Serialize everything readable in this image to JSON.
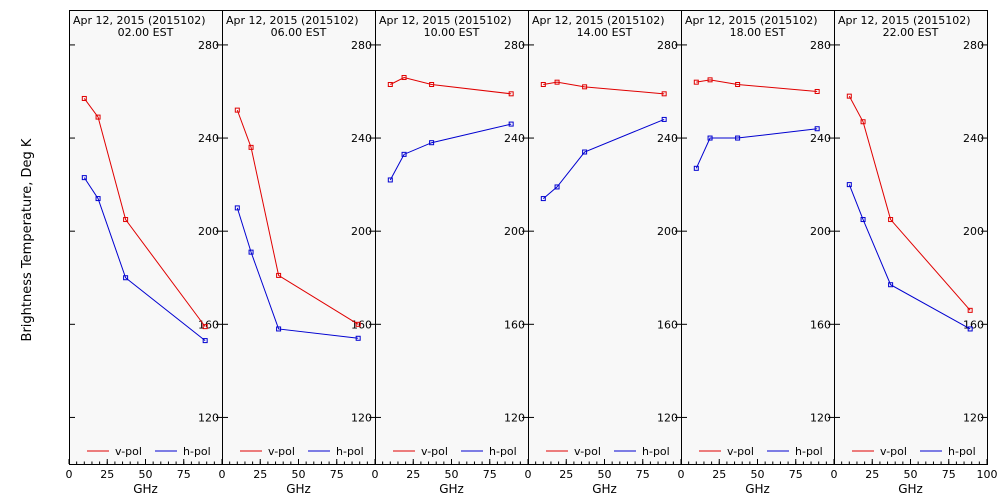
{
  "chart_data": {
    "type": "line",
    "ylabel": "Brightness Temperature, Deg K",
    "ylim": [
      100,
      295
    ],
    "yticks": [
      120,
      160,
      200,
      240,
      280
    ],
    "grid": false,
    "legend_placement": "bottom",
    "colors": {
      "v-pol": "#e00000",
      "h-pol": "#0000d0"
    },
    "panels": [
      {
        "title_line1": "Apr 12, 2015 (2015102)",
        "title_line2": "02.00 EST",
        "xlabel": "GHz",
        "xlim": [
          0,
          100
        ],
        "xticks": [
          0,
          25,
          50,
          75
        ],
        "series": [
          {
            "name": "v-pol",
            "x": [
              10,
              19,
              37,
              89
            ],
            "y": [
              257,
              249,
              205,
              159
            ]
          },
          {
            "name": "h-pol",
            "x": [
              10,
              19,
              37,
              89
            ],
            "y": [
              223,
              214,
              180,
              153
            ]
          }
        ]
      },
      {
        "title_line1": "Apr 12, 2015 (2015102)",
        "title_line2": "06.00 EST",
        "xlabel": "GHz",
        "xlim": [
          0,
          100
        ],
        "xticks": [
          0,
          25,
          50,
          75
        ],
        "series": [
          {
            "name": "v-pol",
            "x": [
              10,
              19,
              37,
              89
            ],
            "y": [
              252,
              236,
              181,
              160
            ]
          },
          {
            "name": "h-pol",
            "x": [
              10,
              19,
              37,
              89
            ],
            "y": [
              210,
              191,
              158,
              154
            ]
          }
        ]
      },
      {
        "title_line1": "Apr 12, 2015 (2015102)",
        "title_line2": "10.00 EST",
        "xlabel": "GHz",
        "xlim": [
          0,
          100
        ],
        "xticks": [
          0,
          25,
          50,
          75
        ],
        "series": [
          {
            "name": "v-pol",
            "x": [
              10,
              19,
              37,
              89
            ],
            "y": [
              263,
              266,
              263,
              259
            ]
          },
          {
            "name": "h-pol",
            "x": [
              10,
              19,
              37,
              89
            ],
            "y": [
              222,
              233,
              238,
              246
            ]
          }
        ]
      },
      {
        "title_line1": "Apr 12, 2015 (2015102)",
        "title_line2": "14.00 EST",
        "xlabel": "GHz",
        "xlim": [
          0,
          100
        ],
        "xticks": [
          0,
          25,
          50,
          75
        ],
        "series": [
          {
            "name": "v-pol",
            "x": [
              10,
              19,
              37,
              89
            ],
            "y": [
              263,
              264,
              262,
              259
            ]
          },
          {
            "name": "h-pol",
            "x": [
              10,
              19,
              37,
              89
            ],
            "y": [
              214,
              219,
              234,
              248
            ]
          }
        ]
      },
      {
        "title_line1": "Apr 12, 2015 (2015102)",
        "title_line2": "18.00 EST",
        "xlabel": "GHz",
        "xlim": [
          0,
          100
        ],
        "xticks": [
          0,
          25,
          50,
          75
        ],
        "series": [
          {
            "name": "v-pol",
            "x": [
              10,
              19,
              37,
              89
            ],
            "y": [
              264,
              265,
              263,
              260
            ]
          },
          {
            "name": "h-pol",
            "x": [
              10,
              19,
              37,
              89
            ],
            "y": [
              227,
              240,
              240,
              244
            ]
          }
        ]
      },
      {
        "title_line1": "Apr 12, 2015 (2015102)",
        "title_line2": "22.00 EST",
        "xlabel": "GHz",
        "xlim": [
          0,
          100
        ],
        "xticks": [
          0,
          25,
          50,
          75,
          100
        ],
        "series": [
          {
            "name": "v-pol",
            "x": [
              10,
              19,
              37,
              89
            ],
            "y": [
              258,
              247,
              205,
              166
            ]
          },
          {
            "name": "h-pol",
            "x": [
              10,
              19,
              37,
              89
            ],
            "y": [
              220,
              205,
              177,
              158
            ]
          }
        ]
      }
    ]
  }
}
